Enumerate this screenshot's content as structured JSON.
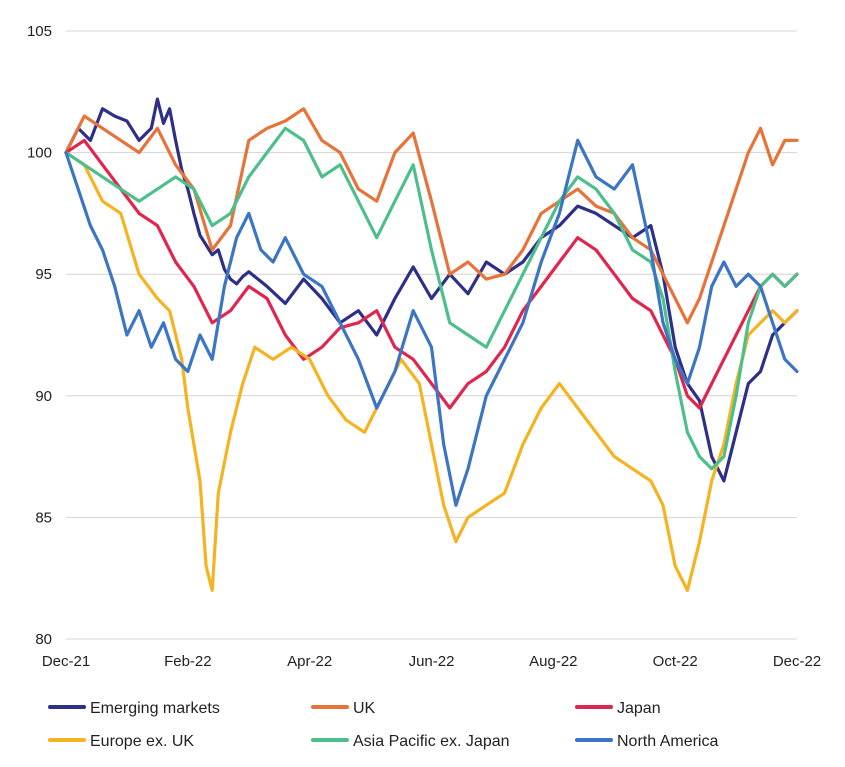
{
  "chart_data": {
    "type": "line",
    "title": "",
    "xlabel": "",
    "ylabel": "",
    "ylim": [
      80,
      105
    ],
    "yticks": [
      80,
      85,
      90,
      95,
      100,
      105
    ],
    "xlim": [
      0,
      12
    ],
    "xticks": [
      {
        "x": 0,
        "label": "Dec-21"
      },
      {
        "x": 2,
        "label": "Feb-22"
      },
      {
        "x": 4,
        "label": "Apr-22"
      },
      {
        "x": 6,
        "label": "Jun-22"
      },
      {
        "x": 8,
        "label": "Aug-22"
      },
      {
        "x": 10,
        "label": "Oct-22"
      },
      {
        "x": 12,
        "label": "Dec-22"
      }
    ],
    "grid": "horizontal",
    "legend_position": "bottom",
    "series": [
      {
        "name": "Emerging markets",
        "color": "#2e2f86",
        "points": [
          [
            0,
            100
          ],
          [
            0.2,
            101
          ],
          [
            0.4,
            100.5
          ],
          [
            0.6,
            101.8
          ],
          [
            0.8,
            101.5
          ],
          [
            1.0,
            101.3
          ],
          [
            1.2,
            100.5
          ],
          [
            1.4,
            101
          ],
          [
            1.5,
            102.2
          ],
          [
            1.6,
            101.2
          ],
          [
            1.7,
            101.8
          ],
          [
            1.8,
            100.5
          ],
          [
            1.9,
            99.3
          ],
          [
            2.0,
            98.5
          ],
          [
            2.1,
            97.5
          ],
          [
            2.2,
            96.6
          ],
          [
            2.3,
            96.2
          ],
          [
            2.4,
            95.8
          ],
          [
            2.5,
            96.0
          ],
          [
            2.6,
            95.2
          ],
          [
            2.7,
            94.8
          ],
          [
            2.8,
            94.6
          ],
          [
            2.9,
            94.9
          ],
          [
            3.0,
            95.1
          ],
          [
            3.3,
            94.5
          ],
          [
            3.6,
            93.8
          ],
          [
            3.9,
            94.8
          ],
          [
            4.2,
            94.0
          ],
          [
            4.5,
            93.0
          ],
          [
            4.8,
            93.5
          ],
          [
            5.1,
            92.5
          ],
          [
            5.4,
            94.0
          ],
          [
            5.7,
            95.3
          ],
          [
            6.0,
            94.0
          ],
          [
            6.3,
            95.0
          ],
          [
            6.6,
            94.2
          ],
          [
            6.9,
            95.5
          ],
          [
            7.2,
            95.0
          ],
          [
            7.5,
            95.5
          ],
          [
            7.8,
            96.5
          ],
          [
            8.1,
            97.0
          ],
          [
            8.4,
            97.8
          ],
          [
            8.7,
            97.5
          ],
          [
            9.0,
            97.0
          ],
          [
            9.3,
            96.5
          ],
          [
            9.6,
            97.0
          ],
          [
            9.8,
            95.0
          ],
          [
            10.0,
            92.0
          ],
          [
            10.2,
            90.5
          ],
          [
            10.4,
            89.8
          ],
          [
            10.6,
            87.5
          ],
          [
            10.8,
            86.5
          ],
          [
            11.0,
            88.5
          ],
          [
            11.2,
            90.5
          ],
          [
            11.4,
            91.0
          ],
          [
            11.6,
            92.5
          ],
          [
            11.8,
            93.0
          ],
          [
            12.0,
            93.5
          ]
        ]
      },
      {
        "name": "UK",
        "color": "#e8733a",
        "points": [
          [
            0,
            100
          ],
          [
            0.3,
            101.5
          ],
          [
            0.6,
            101.0
          ],
          [
            0.9,
            100.5
          ],
          [
            1.2,
            100.0
          ],
          [
            1.5,
            101.0
          ],
          [
            1.8,
            99.5
          ],
          [
            2.1,
            98.5
          ],
          [
            2.4,
            96.0
          ],
          [
            2.7,
            97.0
          ],
          [
            3.0,
            100.5
          ],
          [
            3.3,
            101.0
          ],
          [
            3.6,
            101.3
          ],
          [
            3.9,
            101.8
          ],
          [
            4.2,
            100.5
          ],
          [
            4.5,
            100.0
          ],
          [
            4.8,
            98.5
          ],
          [
            5.1,
            98.0
          ],
          [
            5.4,
            100.0
          ],
          [
            5.7,
            100.8
          ],
          [
            6.0,
            98.0
          ],
          [
            6.3,
            95.0
          ],
          [
            6.6,
            95.5
          ],
          [
            6.9,
            94.8
          ],
          [
            7.2,
            95.0
          ],
          [
            7.5,
            96.0
          ],
          [
            7.8,
            97.5
          ],
          [
            8.1,
            98.0
          ],
          [
            8.4,
            98.5
          ],
          [
            8.7,
            97.8
          ],
          [
            9.0,
            97.5
          ],
          [
            9.3,
            96.5
          ],
          [
            9.6,
            96.0
          ],
          [
            9.8,
            95.0
          ],
          [
            10.0,
            94.0
          ],
          [
            10.2,
            93.0
          ],
          [
            10.4,
            94.0
          ],
          [
            10.6,
            95.5
          ],
          [
            10.8,
            97.0
          ],
          [
            11.0,
            98.5
          ],
          [
            11.2,
            100.0
          ],
          [
            11.4,
            101.0
          ],
          [
            11.6,
            99.5
          ],
          [
            11.8,
            100.5
          ],
          [
            12.0,
            100.5
          ]
        ]
      },
      {
        "name": "Japan",
        "color": "#e0264f",
        "points": [
          [
            0,
            100
          ],
          [
            0.3,
            100.5
          ],
          [
            0.6,
            99.5
          ],
          [
            0.9,
            98.5
          ],
          [
            1.2,
            97.5
          ],
          [
            1.5,
            97.0
          ],
          [
            1.8,
            95.5
          ],
          [
            2.1,
            94.5
          ],
          [
            2.4,
            93.0
          ],
          [
            2.7,
            93.5
          ],
          [
            3.0,
            94.5
          ],
          [
            3.3,
            94.0
          ],
          [
            3.6,
            92.5
          ],
          [
            3.9,
            91.5
          ],
          [
            4.2,
            92.0
          ],
          [
            4.5,
            92.8
          ],
          [
            4.8,
            93.0
          ],
          [
            5.1,
            93.5
          ],
          [
            5.4,
            92.0
          ],
          [
            5.7,
            91.5
          ],
          [
            6.0,
            90.5
          ],
          [
            6.3,
            89.5
          ],
          [
            6.6,
            90.5
          ],
          [
            6.9,
            91.0
          ],
          [
            7.2,
            92.0
          ],
          [
            7.5,
            93.5
          ],
          [
            7.8,
            94.5
          ],
          [
            8.1,
            95.5
          ],
          [
            8.4,
            96.5
          ],
          [
            8.7,
            96.0
          ],
          [
            9.0,
            95.0
          ],
          [
            9.3,
            94.0
          ],
          [
            9.6,
            93.5
          ],
          [
            9.8,
            92.5
          ],
          [
            10.0,
            91.5
          ],
          [
            10.2,
            90.0
          ],
          [
            10.4,
            89.5
          ],
          [
            10.6,
            90.5
          ],
          [
            10.8,
            91.5
          ],
          [
            11.0,
            92.5
          ],
          [
            11.2,
            93.5
          ],
          [
            11.4,
            94.5
          ],
          [
            11.6,
            95.0
          ],
          [
            11.8,
            94.5
          ],
          [
            12.0,
            95.0
          ]
        ]
      },
      {
        "name": "Europe ex. UK",
        "color": "#f5b321",
        "points": [
          [
            0,
            100
          ],
          [
            0.3,
            99.5
          ],
          [
            0.6,
            98.0
          ],
          [
            0.9,
            97.5
          ],
          [
            1.2,
            95.0
          ],
          [
            1.5,
            94.0
          ],
          [
            1.7,
            93.5
          ],
          [
            1.9,
            91.5
          ],
          [
            2.0,
            89.5
          ],
          [
            2.1,
            88.0
          ],
          [
            2.2,
            86.5
          ],
          [
            2.3,
            83.0
          ],
          [
            2.4,
            82.0
          ],
          [
            2.5,
            86.0
          ],
          [
            2.7,
            88.5
          ],
          [
            2.9,
            90.5
          ],
          [
            3.1,
            92.0
          ],
          [
            3.4,
            91.5
          ],
          [
            3.7,
            92.0
          ],
          [
            4.0,
            91.5
          ],
          [
            4.3,
            90.0
          ],
          [
            4.6,
            89.0
          ],
          [
            4.9,
            88.5
          ],
          [
            5.2,
            90.0
          ],
          [
            5.5,
            91.5
          ],
          [
            5.8,
            90.5
          ],
          [
            6.0,
            88.0
          ],
          [
            6.2,
            85.5
          ],
          [
            6.4,
            84.0
          ],
          [
            6.6,
            85.0
          ],
          [
            6.9,
            85.5
          ],
          [
            7.2,
            86.0
          ],
          [
            7.5,
            88.0
          ],
          [
            7.8,
            89.5
          ],
          [
            8.1,
            90.5
          ],
          [
            8.4,
            89.5
          ],
          [
            8.7,
            88.5
          ],
          [
            9.0,
            87.5
          ],
          [
            9.3,
            87.0
          ],
          [
            9.6,
            86.5
          ],
          [
            9.8,
            85.5
          ],
          [
            10.0,
            83.0
          ],
          [
            10.2,
            82.0
          ],
          [
            10.4,
            84.0
          ],
          [
            10.6,
            86.5
          ],
          [
            10.8,
            88.0
          ],
          [
            11.0,
            90.5
          ],
          [
            11.2,
            92.5
          ],
          [
            11.4,
            93.0
          ],
          [
            11.6,
            93.5
          ],
          [
            11.8,
            93.0
          ],
          [
            12.0,
            93.5
          ]
        ]
      },
      {
        "name": "Asia Pacific ex. Japan",
        "color": "#4dbf8b",
        "points": [
          [
            0,
            100
          ],
          [
            0.3,
            99.5
          ],
          [
            0.6,
            99.0
          ],
          [
            0.9,
            98.5
          ],
          [
            1.2,
            98.0
          ],
          [
            1.5,
            98.5
          ],
          [
            1.8,
            99.0
          ],
          [
            2.1,
            98.5
          ],
          [
            2.4,
            97.0
          ],
          [
            2.7,
            97.5
          ],
          [
            3.0,
            99.0
          ],
          [
            3.3,
            100.0
          ],
          [
            3.6,
            101.0
          ],
          [
            3.9,
            100.5
          ],
          [
            4.2,
            99.0
          ],
          [
            4.5,
            99.5
          ],
          [
            4.8,
            98.0
          ],
          [
            5.1,
            96.5
          ],
          [
            5.4,
            98.0
          ],
          [
            5.7,
            99.5
          ],
          [
            6.0,
            96.0
          ],
          [
            6.3,
            93.0
          ],
          [
            6.6,
            92.5
          ],
          [
            6.9,
            92.0
          ],
          [
            7.2,
            93.5
          ],
          [
            7.5,
            95.0
          ],
          [
            7.8,
            96.5
          ],
          [
            8.1,
            98.0
          ],
          [
            8.4,
            99.0
          ],
          [
            8.7,
            98.5
          ],
          [
            9.0,
            97.5
          ],
          [
            9.3,
            96.0
          ],
          [
            9.6,
            95.5
          ],
          [
            9.8,
            94.0
          ],
          [
            10.0,
            91.0
          ],
          [
            10.2,
            88.5
          ],
          [
            10.4,
            87.5
          ],
          [
            10.6,
            87.0
          ],
          [
            10.8,
            87.5
          ],
          [
            11.0,
            90.0
          ],
          [
            11.2,
            93.0
          ],
          [
            11.4,
            94.5
          ],
          [
            11.6,
            95.0
          ],
          [
            11.8,
            94.5
          ],
          [
            12.0,
            95.0
          ]
        ]
      },
      {
        "name": "North America",
        "color": "#3b75c4",
        "points": [
          [
            0,
            100
          ],
          [
            0.2,
            98.5
          ],
          [
            0.4,
            97.0
          ],
          [
            0.6,
            96.0
          ],
          [
            0.8,
            94.5
          ],
          [
            1.0,
            92.5
          ],
          [
            1.2,
            93.5
          ],
          [
            1.4,
            92.0
          ],
          [
            1.6,
            93.0
          ],
          [
            1.8,
            91.5
          ],
          [
            2.0,
            91.0
          ],
          [
            2.2,
            92.5
          ],
          [
            2.4,
            91.5
          ],
          [
            2.6,
            94.5
          ],
          [
            2.8,
            96.5
          ],
          [
            3.0,
            97.5
          ],
          [
            3.2,
            96.0
          ],
          [
            3.4,
            95.5
          ],
          [
            3.6,
            96.5
          ],
          [
            3.9,
            95.0
          ],
          [
            4.2,
            94.5
          ],
          [
            4.5,
            93.0
          ],
          [
            4.8,
            91.5
          ],
          [
            5.1,
            89.5
          ],
          [
            5.4,
            91.0
          ],
          [
            5.7,
            93.5
          ],
          [
            6.0,
            92.0
          ],
          [
            6.2,
            88.0
          ],
          [
            6.4,
            85.5
          ],
          [
            6.6,
            87.0
          ],
          [
            6.9,
            90.0
          ],
          [
            7.2,
            91.5
          ],
          [
            7.5,
            93.0
          ],
          [
            7.8,
            95.5
          ],
          [
            8.1,
            97.5
          ],
          [
            8.4,
            100.5
          ],
          [
            8.7,
            99.0
          ],
          [
            9.0,
            98.5
          ],
          [
            9.3,
            99.5
          ],
          [
            9.6,
            96.0
          ],
          [
            9.8,
            93.0
          ],
          [
            10.0,
            91.5
          ],
          [
            10.2,
            90.5
          ],
          [
            10.4,
            92.0
          ],
          [
            10.6,
            94.5
          ],
          [
            10.8,
            95.5
          ],
          [
            11.0,
            94.5
          ],
          [
            11.2,
            95.0
          ],
          [
            11.4,
            94.5
          ],
          [
            11.6,
            93.0
          ],
          [
            11.8,
            91.5
          ],
          [
            12.0,
            91.0
          ]
        ]
      }
    ]
  }
}
